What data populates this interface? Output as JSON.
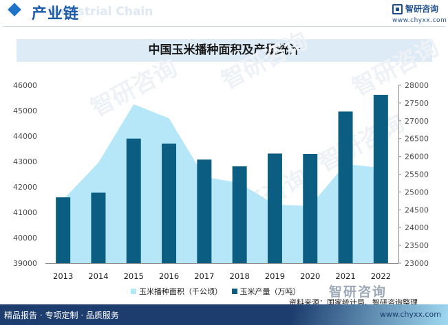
{
  "header": {
    "section_title": "产业链",
    "section_subtitle": "Industrial Chain"
  },
  "logo": {
    "name": "智研咨询",
    "url": "www.chyxx.com",
    "watermark_text": "智研咨询"
  },
  "footer": {
    "tagline": "精品报告 · 专项定制 · 品质服务",
    "url": "www.chyxx.com"
  },
  "colors": {
    "area": "#b5e7f9",
    "bar": "#0b5e82",
    "brand": "#1c3d6e"
  },
  "chart_data": {
    "type": "bar",
    "title": "中国玉米播种面积及产量统计",
    "categories": [
      "2013",
      "2014",
      "2015",
      "2016",
      "2017",
      "2018",
      "2019",
      "2020",
      "2021",
      "2022"
    ],
    "series": [
      {
        "name": "玉米播种面积（千公顷）",
        "type": "area",
        "axis": "left",
        "values": [
          41500,
          42950,
          45250,
          44700,
          42400,
          42150,
          41300,
          41250,
          42900,
          42750
        ]
      },
      {
        "name": "玉米产量（万吨）",
        "type": "bar",
        "axis": "right",
        "values": [
          24850,
          24980,
          26500,
          26360,
          25910,
          25720,
          26080,
          26070,
          27260,
          27730
        ]
      }
    ],
    "y_left": {
      "min": 39000,
      "max": 46000,
      "ticks": [
        "39000",
        "40000",
        "41000",
        "42000",
        "43000",
        "44000",
        "45000",
        "46000"
      ]
    },
    "y_right": {
      "min": 23000,
      "max": 28000,
      "ticks": [
        "23000",
        "23500",
        "24000",
        "24500",
        "25000",
        "25500",
        "26000",
        "26500",
        "27000",
        "27500",
        "28000"
      ]
    },
    "legend_position": "bottom",
    "source": "资料来源：国家统计局、智研咨询整理"
  }
}
